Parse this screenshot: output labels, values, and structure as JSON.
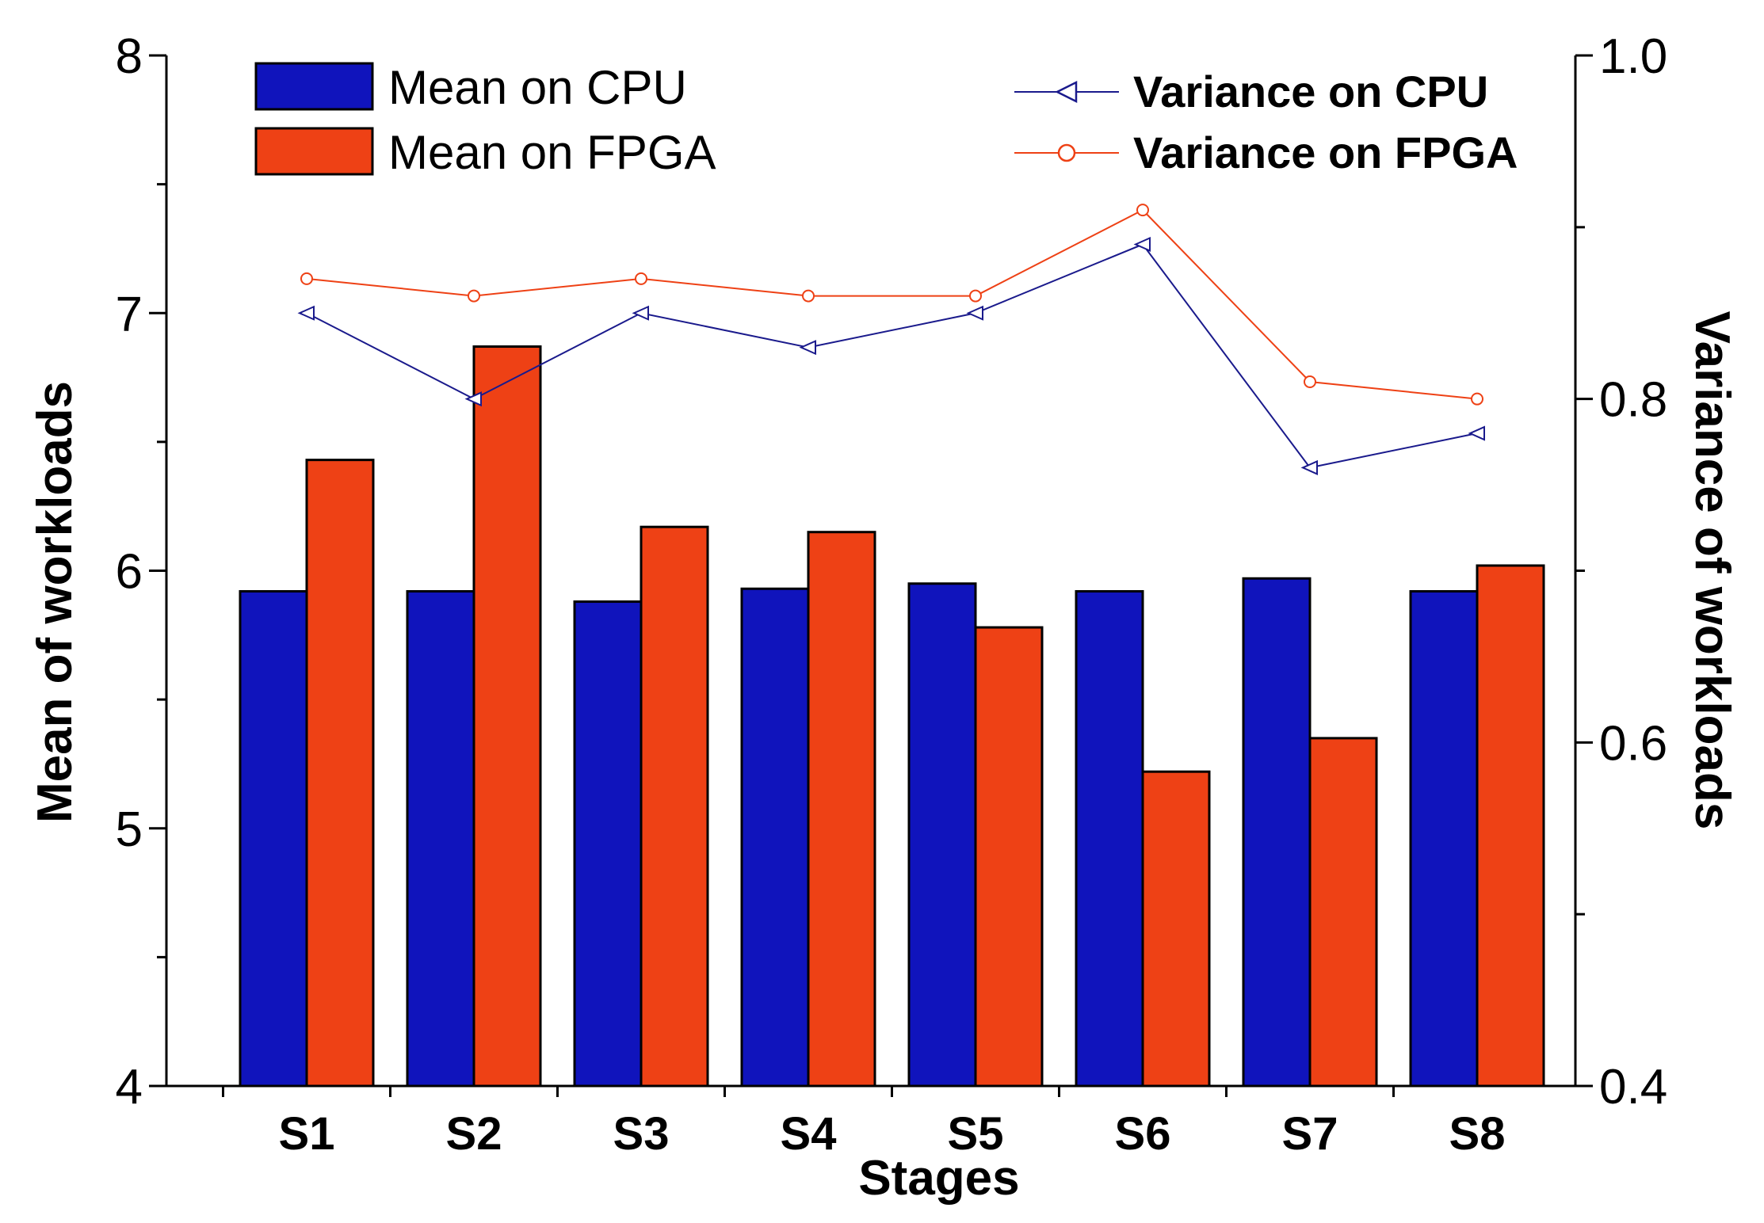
{
  "chart_data": {
    "type": "bar",
    "title": "",
    "xlabel": "Stages",
    "ylabel": "Mean of workloads",
    "y2label": "Variance of workloads",
    "categories": [
      "S1",
      "S2",
      "S3",
      "S4",
      "S5",
      "S6",
      "S7",
      "S8"
    ],
    "ylim": [
      4,
      8
    ],
    "yticks": [
      4,
      5,
      6,
      7,
      8
    ],
    "y2lim": [
      0.4,
      1.0
    ],
    "y2ticks": [
      "0.4",
      "0.6",
      "0.8",
      "1.0"
    ],
    "grid": false,
    "bar_series": [
      {
        "name": "Mean on CPU",
        "color": "#1014BC",
        "values": [
          5.92,
          5.92,
          5.88,
          5.93,
          5.95,
          5.92,
          5.97,
          5.92
        ]
      },
      {
        "name": "Mean on FPGA",
        "color": "#EE4115",
        "values": [
          6.43,
          6.87,
          6.17,
          6.15,
          5.78,
          5.22,
          5.35,
          6.02
        ]
      }
    ],
    "line_series": [
      {
        "name": "Variance on CPU",
        "axis": "right",
        "marker": "triangle-left",
        "color": "#1A1A8C",
        "values": [
          0.85,
          0.8,
          0.85,
          0.83,
          0.85,
          0.89,
          0.76,
          0.78
        ]
      },
      {
        "name": "Variance on FPGA",
        "axis": "right",
        "marker": "circle",
        "color": "#EE4115",
        "values": [
          0.87,
          0.86,
          0.87,
          0.86,
          0.86,
          0.91,
          0.81,
          0.8
        ]
      }
    ],
    "legend_placement": "top"
  }
}
